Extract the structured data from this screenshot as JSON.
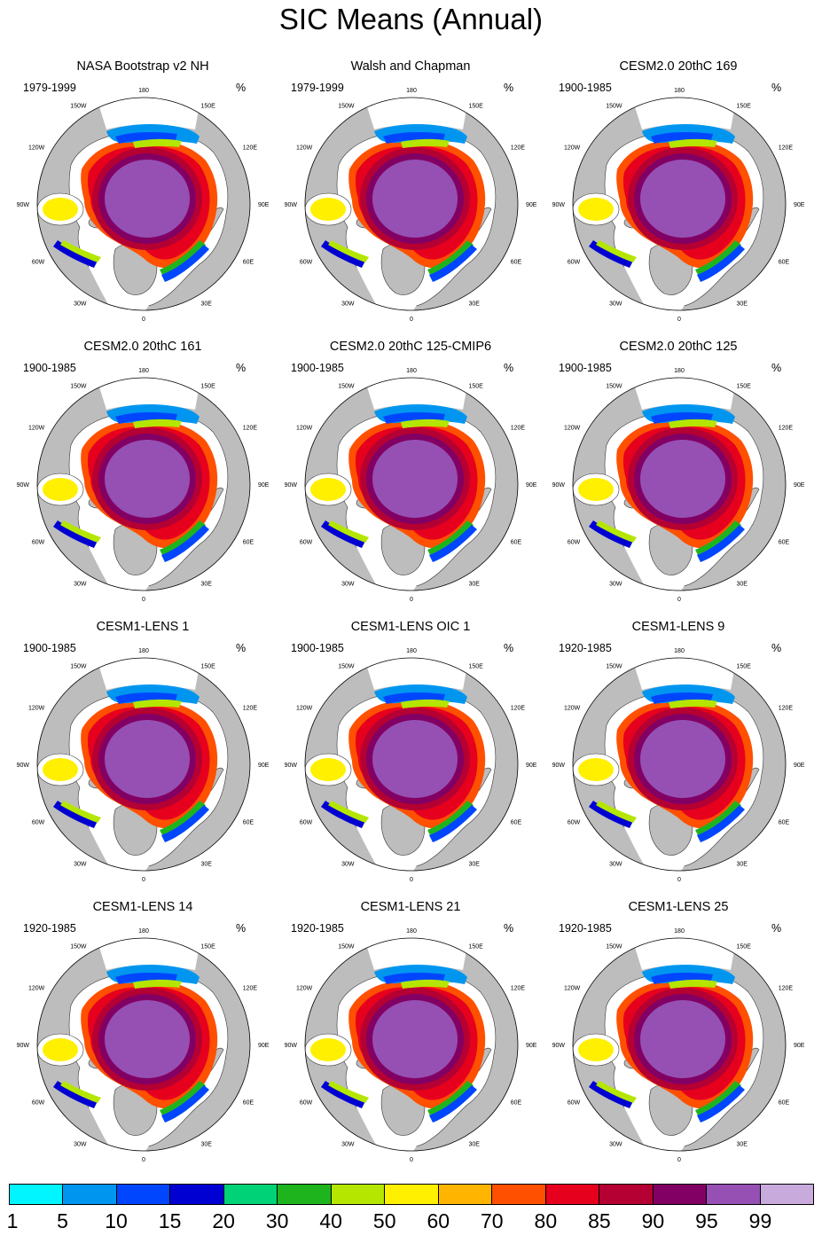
{
  "title": "SIC Means (Annual)",
  "unit": "%",
  "panels": [
    {
      "title": "NASA Bootstrap v2 NH",
      "period": "1979-1999"
    },
    {
      "title": "Walsh and Chapman",
      "period": "1979-1999"
    },
    {
      "title": "CESM2.0 20thC 169",
      "period": "1900-1985"
    },
    {
      "title": "CESM2.0 20thC 161",
      "period": "1900-1985"
    },
    {
      "title": "CESM2.0 20thC 125-CMIP6",
      "period": "1900-1985"
    },
    {
      "title": "CESM2.0 20thC 125",
      "period": "1900-1985"
    },
    {
      "title": "CESM1-LENS 1",
      "period": "1900-1985"
    },
    {
      "title": "CESM1-LENS OIC 1",
      "period": "1900-1985"
    },
    {
      "title": "CESM1-LENS 9",
      "period": "1920-1985"
    },
    {
      "title": "CESM1-LENS 14",
      "period": "1920-1985"
    },
    {
      "title": "CESM1-LENS 21",
      "period": "1920-1985"
    },
    {
      "title": "CESM1-LENS 25",
      "period": "1920-1985"
    }
  ],
  "longitude_labels": [
    "180",
    "150E",
    "120E",
    "90E",
    "60E",
    "30E",
    "0",
    "30W",
    "60W",
    "90W",
    "120W",
    "150W"
  ],
  "colorbar": {
    "labels": [
      "1",
      "5",
      "10",
      "15",
      "20",
      "30",
      "40",
      "50",
      "60",
      "70",
      "80",
      "85",
      "90",
      "95",
      "99"
    ],
    "colors": [
      "#00f5ff",
      "#0096f0",
      "#0046ff",
      "#0000d2",
      "#00d278",
      "#1eb41e",
      "#b4e600",
      "#fff000",
      "#ffb400",
      "#ff5000",
      "#e6001e",
      "#b40032",
      "#820064",
      "#9650b4",
      "#c8aadc"
    ]
  },
  "map_colors": {
    "land": "#bdbdbd",
    "ocean": "#ffffff",
    "coastline": "#333333"
  }
}
